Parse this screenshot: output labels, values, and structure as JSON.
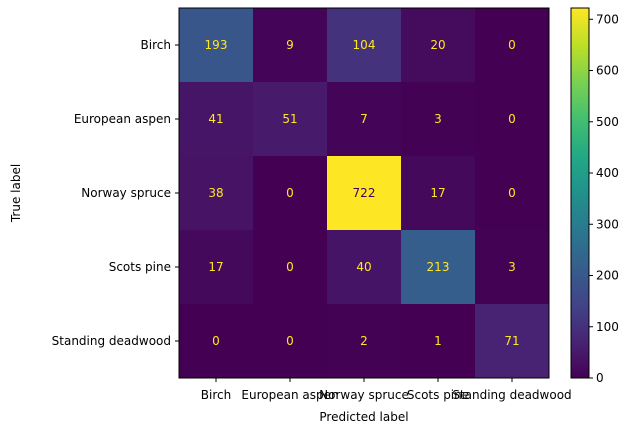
{
  "chart_data": {
    "type": "heatmap",
    "xlabel": "Predicted label",
    "ylabel": "True label",
    "x_tick_labels": [
      "Birch",
      "European aspen",
      "Norway spruce",
      "Scots pine",
      "Standing deadwood"
    ],
    "y_tick_labels": [
      "Birch",
      "European aspen",
      "Norway spruce",
      "Scots pine",
      "Standing deadwood"
    ],
    "matrix": [
      [
        193,
        9,
        104,
        20,
        0
      ],
      [
        41,
        51,
        7,
        3,
        0
      ],
      [
        38,
        0,
        722,
        17,
        0
      ],
      [
        17,
        0,
        40,
        213,
        3
      ],
      [
        0,
        0,
        2,
        1,
        71
      ]
    ],
    "colorbar": {
      "colormap": "viridis",
      "range": [
        0,
        722
      ],
      "ticks": [
        0,
        100,
        200,
        300,
        400,
        500,
        600,
        700
      ]
    },
    "text_colors": {
      "on_dark": "#fde725",
      "on_light": "#440154"
    }
  }
}
